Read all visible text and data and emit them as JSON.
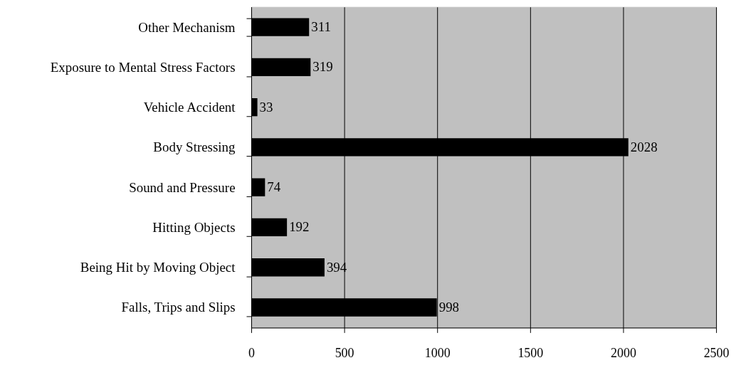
{
  "chart_data": {
    "type": "bar",
    "orientation": "horizontal",
    "categories": [
      "Other Mechanism",
      "Exposure to Mental Stress Factors",
      "Vehicle Accident",
      "Body Stressing",
      "Sound and Pressure",
      "Hitting Objects",
      "Being Hit by Moving Object",
      "Falls, Trips and Slips"
    ],
    "values": [
      311,
      319,
      33,
      2028,
      74,
      192,
      394,
      998
    ],
    "color": "#000000",
    "xlim": [
      0,
      2500
    ],
    "xticks": [
      0,
      500,
      1000,
      1500,
      2000,
      2500
    ],
    "grid": "x",
    "data_labels": true
  }
}
